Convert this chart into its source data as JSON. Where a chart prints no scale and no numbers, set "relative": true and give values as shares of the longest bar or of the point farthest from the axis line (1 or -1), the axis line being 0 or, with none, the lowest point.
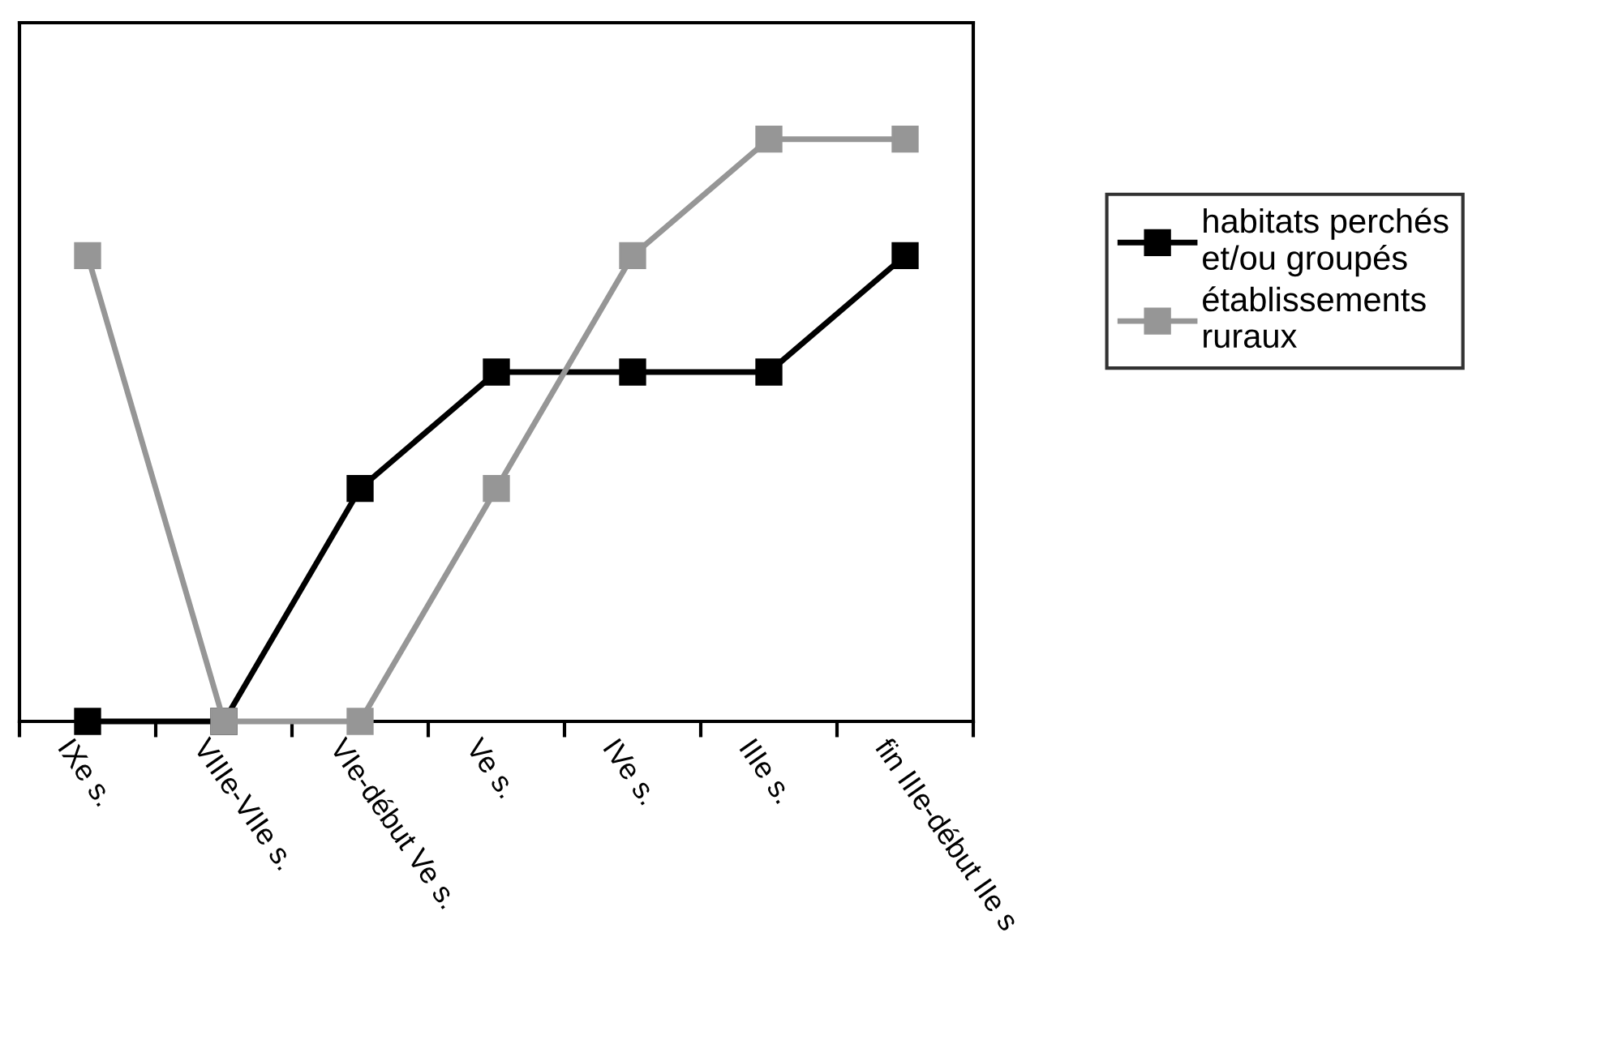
{
  "chart_data": {
    "type": "line",
    "relative": true,
    "categories": [
      "IXe s.",
      "VIIIe-VIIe s.",
      "VIe-début Ve s.",
      "Ve s.",
      "IVe s.",
      "IIIe s.",
      "fin IIIe-début IIe s"
    ],
    "series": [
      {
        "name": "habitats perchés\net/ou groupés",
        "color": "#000000",
        "values": [
          0,
          0,
          0.4,
          0.6,
          0.6,
          0.6,
          0.8
        ]
      },
      {
        "name": "établissements\nruraux",
        "color": "#969696",
        "values": [
          0.8,
          0,
          0,
          0.4,
          0.8,
          1,
          1
        ]
      }
    ],
    "marker": "square",
    "line_style": "solid",
    "legend": "right",
    "grid": false
  }
}
